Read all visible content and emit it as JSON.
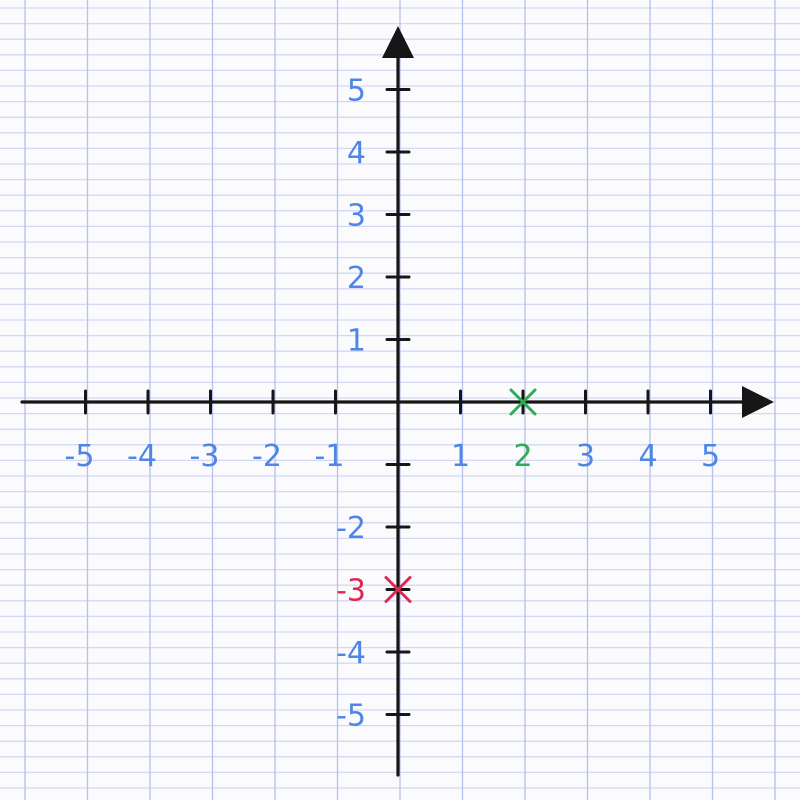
{
  "diagram": {
    "type": "cartesian-plane",
    "x_ticks": [
      {
        "value": -5,
        "label": "-5"
      },
      {
        "value": -4,
        "label": "-4"
      },
      {
        "value": -3,
        "label": "-3"
      },
      {
        "value": -2,
        "label": "-2"
      },
      {
        "value": -1,
        "label": "-1"
      },
      {
        "value": 1,
        "label": "1"
      },
      {
        "value": 2,
        "label": "2",
        "highlight": "green"
      },
      {
        "value": 3,
        "label": "3"
      },
      {
        "value": 4,
        "label": "4"
      },
      {
        "value": 5,
        "label": "5"
      }
    ],
    "y_ticks": [
      {
        "value": 5,
        "label": "5"
      },
      {
        "value": 4,
        "label": "4"
      },
      {
        "value": 3,
        "label": "3"
      },
      {
        "value": 2,
        "label": "2"
      },
      {
        "value": 1,
        "label": "1"
      },
      {
        "value": -1,
        "label": ""
      },
      {
        "value": -2,
        "label": "-2"
      },
      {
        "value": -3,
        "label": "-3",
        "highlight": "red"
      },
      {
        "value": -4,
        "label": "-4"
      },
      {
        "value": -5,
        "label": "-5"
      }
    ],
    "points": [
      {
        "x": 2,
        "y": 0,
        "color": "green"
      },
      {
        "x": 0,
        "y": -3,
        "color": "red"
      }
    ],
    "colors": {
      "label": "#4f86e6",
      "axis": "#161616",
      "green": "#2faa55",
      "red": "#e0284f",
      "grid": "#b7c0ee",
      "grid_faint": "#d3d8f3"
    }
  }
}
